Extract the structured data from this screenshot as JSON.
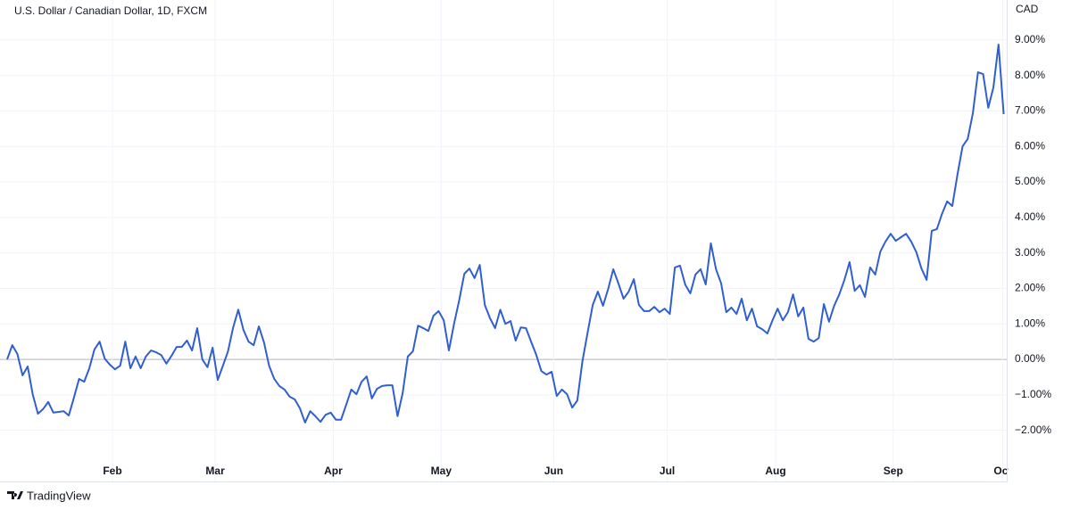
{
  "chart_data": {
    "type": "line",
    "title": "U.S. Dollar / Canadian Dollar, 1D, FXCM",
    "currency": "CAD",
    "brand": "TradingView",
    "color": "#2f5fd0",
    "grid": true,
    "values": [
      0,
      0.4,
      0.15,
      -0.45,
      -0.2,
      -1.0,
      -1.53,
      -1.4,
      -1.2,
      -1.5,
      -1.48,
      -1.46,
      -1.58,
      -1.08,
      -0.55,
      -0.63,
      -0.25,
      0.28,
      0.5,
      0.02,
      -0.15,
      -0.28,
      -0.18,
      0.5,
      -0.25,
      0.08,
      -0.25,
      0.08,
      0.25,
      0.2,
      0.12,
      -0.12,
      0.1,
      0.35,
      0.35,
      0.53,
      0.25,
      0.88,
      0.0,
      -0.22,
      0.33,
      -0.58,
      -0.18,
      0.23,
      0.9,
      1.4,
      0.83,
      0.5,
      0.4,
      0.93,
      0.48,
      -0.18,
      -0.55,
      -0.75,
      -0.85,
      -1.05,
      -1.13,
      -1.38,
      -1.78,
      -1.46,
      -1.6,
      -1.76,
      -1.56,
      -1.5,
      -1.7,
      -1.7,
      -1.28,
      -0.85,
      -0.98,
      -0.63,
      -0.48,
      -1.1,
      -0.83,
      -0.75,
      -0.73,
      -0.73,
      -1.6,
      -0.95,
      0.08,
      0.23,
      0.95,
      0.88,
      0.8,
      1.23,
      1.36,
      1.1,
      0.25,
      1.0,
      1.66,
      2.41,
      2.56,
      2.29,
      2.66,
      1.53,
      1.16,
      0.88,
      1.4,
      1.0,
      1.08,
      0.53,
      0.9,
      0.88,
      0.5,
      0.13,
      -0.33,
      -0.43,
      -0.35,
      -1.03,
      -0.85,
      -0.98,
      -1.36,
      -1.16,
      -0.05,
      0.75,
      1.53,
      1.91,
      1.51,
      1.98,
      2.54,
      2.14,
      1.71,
      1.91,
      2.26,
      1.53,
      1.36,
      1.36,
      1.48,
      1.33,
      1.43,
      1.28,
      2.59,
      2.64,
      2.11,
      1.86,
      2.39,
      2.54,
      2.11,
      3.27,
      2.54,
      2.14,
      1.33,
      1.46,
      1.28,
      1.71,
      1.1,
      1.43,
      0.93,
      0.85,
      0.73,
      1.1,
      1.43,
      1.1,
      1.33,
      1.83,
      1.21,
      1.46,
      0.58,
      0.5,
      0.6,
      1.56,
      1.06,
      1.51,
      1.83,
      2.24,
      2.74,
      1.93,
      2.09,
      1.76,
      2.59,
      2.39,
      3.04,
      3.32,
      3.54,
      3.34,
      3.44,
      3.54,
      3.32,
      3.02,
      2.56,
      2.24,
      3.62,
      3.67,
      4.1,
      4.45,
      4.32,
      5.2,
      6.0,
      6.21,
      6.93,
      8.09,
      8.04,
      7.09,
      7.66,
      8.87,
      6.91
    ],
    "xlim": [
      0,
      194.6
    ],
    "xticks": [
      {
        "value": 20.5,
        "label": "Feb"
      },
      {
        "value": 40.5,
        "label": "Mar"
      },
      {
        "value": 63.5,
        "label": "Apr"
      },
      {
        "value": 84.5,
        "label": "May"
      },
      {
        "value": 106.4,
        "label": "Jun"
      },
      {
        "value": 128.5,
        "label": "Jul"
      },
      {
        "value": 149.6,
        "label": "Aug"
      },
      {
        "value": 172.5,
        "label": "Sep"
      },
      {
        "value": 193.8,
        "label": "Oct"
      }
    ],
    "ylim": [
      -3.44,
      10.0
    ],
    "yticks": [
      {
        "value": 9,
        "label": "9.00%"
      },
      {
        "value": 8,
        "label": "8.00%"
      },
      {
        "value": 7,
        "label": "7.00%"
      },
      {
        "value": 6,
        "label": "6.00%"
      },
      {
        "value": 5,
        "label": "5.00%"
      },
      {
        "value": 4,
        "label": "4.00%"
      },
      {
        "value": 3,
        "label": "3.00%"
      },
      {
        "value": 2,
        "label": "2.00%"
      },
      {
        "value": 1,
        "label": "1.00%"
      },
      {
        "value": 0,
        "label": "0.00%"
      },
      {
        "value": -1,
        "label": "−1.00%"
      },
      {
        "value": -2,
        "label": "−2.00%"
      }
    ]
  }
}
